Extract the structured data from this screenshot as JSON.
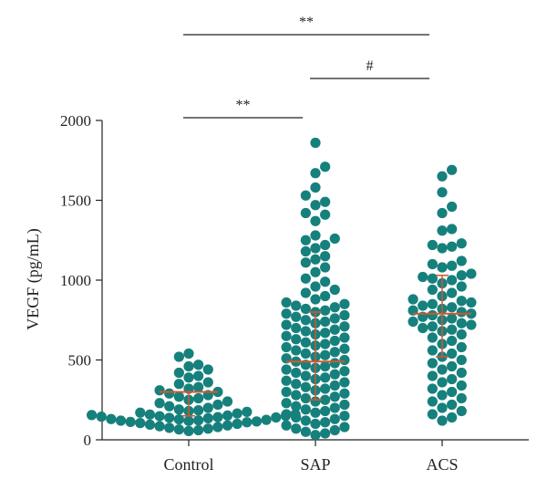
{
  "chart_data": {
    "type": "scatter",
    "subtype": "dot-plot",
    "ylabel": "VEGF (pg/mL)",
    "xlabel": "",
    "ylim": [
      0,
      2000
    ],
    "yticks": [
      0,
      500,
      1000,
      1500,
      2000
    ],
    "categories": [
      "Control",
      "SAP",
      "ACS"
    ],
    "point_color": "#16807c",
    "median_color": "#d1572e",
    "groups": [
      {
        "name": "Control",
        "median": 300,
        "iqr": [
          150,
          300
        ],
        "values": [
          540,
          520,
          470,
          460,
          440,
          420,
          400,
          390,
          360,
          350,
          330,
          320,
          310,
          300,
          290,
          280,
          270,
          260,
          250,
          240,
          230,
          220,
          210,
          200,
          190,
          185,
          180,
          175,
          170,
          165,
          160,
          158,
          155,
          152,
          150,
          148,
          145,
          142,
          140,
          138,
          135,
          130,
          128,
          125,
          122,
          120,
          118,
          115,
          112,
          110,
          105,
          100,
          95,
          90,
          85,
          80,
          75,
          70,
          65,
          60,
          55
        ]
      },
      {
        "name": "SAP",
        "median": 490,
        "iqr": [
          250,
          800
        ],
        "values": [
          1860,
          1710,
          1670,
          1580,
          1530,
          1490,
          1470,
          1420,
          1410,
          1370,
          1280,
          1260,
          1250,
          1220,
          1200,
          1180,
          1150,
          1130,
          1110,
          1080,
          1050,
          1010,
          990,
          960,
          940,
          920,
          900,
          880,
          860,
          850,
          840,
          830,
          820,
          810,
          800,
          790,
          780,
          770,
          760,
          750,
          740,
          730,
          720,
          710,
          700,
          690,
          680,
          670,
          660,
          650,
          640,
          630,
          620,
          610,
          600,
          590,
          580,
          570,
          560,
          550,
          540,
          530,
          520,
          510,
          500,
          490,
          480,
          470,
          460,
          450,
          440,
          430,
          420,
          410,
          400,
          390,
          380,
          370,
          360,
          350,
          340,
          330,
          320,
          310,
          300,
          290,
          280,
          270,
          260,
          250,
          240,
          230,
          220,
          210,
          200,
          190,
          180,
          170,
          160,
          150,
          140,
          130,
          120,
          110,
          100,
          90,
          80,
          70,
          60,
          50,
          40,
          30
        ]
      },
      {
        "name": "ACS",
        "median": 790,
        "iqr": [
          520,
          1030
        ],
        "values": [
          1690,
          1650,
          1550,
          1460,
          1420,
          1320,
          1310,
          1230,
          1220,
          1210,
          1200,
          1120,
          1100,
          1090,
          1080,
          1040,
          1030,
          1020,
          1010,
          1000,
          980,
          960,
          940,
          920,
          900,
          880,
          870,
          860,
          850,
          840,
          830,
          820,
          810,
          800,
          790,
          780,
          770,
          760,
          750,
          740,
          730,
          720,
          710,
          700,
          690,
          680,
          660,
          640,
          620,
          600,
          580,
          560,
          540,
          520,
          500,
          480,
          460,
          440,
          420,
          400,
          380,
          360,
          340,
          320,
          300,
          280,
          260,
          240,
          220,
          200,
          180,
          160,
          140,
          120
        ]
      }
    ],
    "comparisons": [
      {
        "from": "Control",
        "to": "SAP",
        "label": "**",
        "level": 1
      },
      {
        "from": "SAP",
        "to": "ACS",
        "label": "#",
        "level": 2
      },
      {
        "from": "Control",
        "to": "ACS",
        "label": "**",
        "level": 3
      }
    ]
  }
}
